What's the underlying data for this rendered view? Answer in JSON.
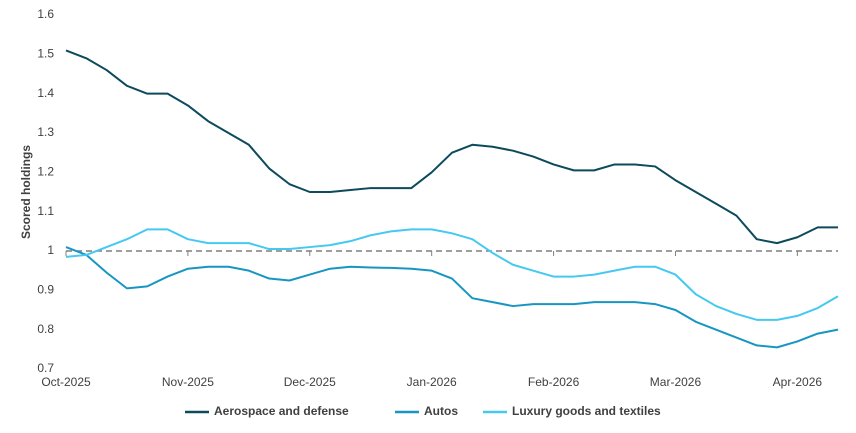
{
  "chart_data": {
    "type": "line",
    "y_label": "Scored holdings",
    "categories": [
      "Oct-2025",
      null,
      null,
      null,
      null,
      null,
      "Nov-2025",
      null,
      null,
      null,
      null,
      null,
      "Dec-2025",
      null,
      null,
      null,
      null,
      null,
      "Jan-2026",
      null,
      null,
      null,
      null,
      null,
      "Feb-2026",
      null,
      null,
      null,
      null,
      null,
      "Mar-2026",
      null,
      null,
      null,
      null,
      null,
      "Apr-2026",
      null,
      null
    ],
    "series": [
      {
        "name": "Aerospace and defense",
        "color": "#0c4a5c",
        "values": [
          1.51,
          1.49,
          1.46,
          1.42,
          1.4,
          1.4,
          1.37,
          1.33,
          1.3,
          1.27,
          1.21,
          1.17,
          1.15,
          1.15,
          1.155,
          1.16,
          1.16,
          1.16,
          1.2,
          1.25,
          1.27,
          1.265,
          1.255,
          1.24,
          1.22,
          1.205,
          1.205,
          1.22,
          1.22,
          1.215,
          1.18,
          1.15,
          1.12,
          1.09,
          1.03,
          1.02,
          1.035,
          1.06,
          1.06
        ]
      },
      {
        "name": "Autos",
        "color": "#1796c2",
        "values": [
          1.01,
          0.99,
          0.945,
          0.905,
          0.91,
          0.935,
          0.955,
          0.96,
          0.96,
          0.95,
          0.93,
          0.925,
          0.94,
          0.955,
          0.96,
          0.958,
          0.957,
          0.955,
          0.95,
          0.93,
          0.88,
          0.87,
          0.86,
          0.865,
          0.865,
          0.865,
          0.87,
          0.87,
          0.87,
          0.865,
          0.85,
          0.82,
          0.8,
          0.78,
          0.76,
          0.755,
          0.77,
          0.79,
          0.8
        ]
      },
      {
        "name": "Luxury goods and textiles",
        "color": "#45c9f0",
        "values": [
          0.985,
          0.99,
          1.01,
          1.03,
          1.055,
          1.055,
          1.03,
          1.02,
          1.02,
          1.02,
          1.005,
          1.005,
          1.01,
          1.015,
          1.025,
          1.04,
          1.05,
          1.055,
          1.055,
          1.045,
          1.03,
          0.995,
          0.965,
          0.95,
          0.935,
          0.935,
          0.94,
          0.95,
          0.96,
          0.96,
          0.94,
          0.89,
          0.86,
          0.84,
          0.825,
          0.825,
          0.835,
          0.855,
          0.885
        ]
      }
    ],
    "reference_line": 1,
    "ylim": [
      0.7,
      1.6
    ],
    "yticks": [
      0.7,
      0.8,
      0.9,
      1,
      1.1,
      1.2,
      1.3,
      1.4,
      1.5,
      1.6
    ],
    "legend": "bottom"
  }
}
